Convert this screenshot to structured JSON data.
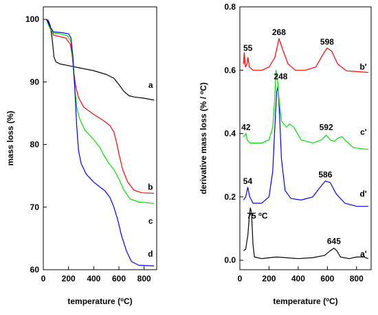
{
  "chart_data": [
    {
      "type": "line",
      "xlabel": "temperature (°C)",
      "ylabel": "mass loss (%)",
      "xlim": [
        0,
        900
      ],
      "ylim": [
        60,
        102
      ],
      "xticks": [
        0,
        200,
        400,
        600,
        800
      ],
      "yticks": [
        60,
        70,
        80,
        90,
        100
      ],
      "grid": false,
      "series": [
        {
          "name": "a",
          "color": "#000000",
          "label_at": [
            870,
            89.5
          ],
          "points": [
            [
              25,
              100
            ],
            [
              40,
              99.8
            ],
            [
              55,
              99
            ],
            [
              70,
              97
            ],
            [
              85,
              94
            ],
            [
              100,
              93.2
            ],
            [
              130,
              92.9
            ],
            [
              200,
              92.6
            ],
            [
              300,
              92.2
            ],
            [
              400,
              91.8
            ],
            [
              500,
              91.2
            ],
            [
              560,
              90.6
            ],
            [
              600,
              89.6
            ],
            [
              640,
              88.5
            ],
            [
              680,
              87.8
            ],
            [
              720,
              87.6
            ],
            [
              800,
              87.4
            ],
            [
              880,
              87.1
            ]
          ]
        },
        {
          "name": "b",
          "color": "#ff0000",
          "label_at": [
            870,
            73.2
          ],
          "points": [
            [
              25,
              100
            ],
            [
              50,
              99
            ],
            [
              80,
              97.5
            ],
            [
              120,
              97.3
            ],
            [
              180,
              97
            ],
            [
              215,
              96
            ],
            [
              230,
              94
            ],
            [
              245,
              91
            ],
            [
              260,
              89
            ],
            [
              280,
              87.5
            ],
            [
              320,
              86
            ],
            [
              400,
              84.8
            ],
            [
              480,
              83.8
            ],
            [
              530,
              83
            ],
            [
              560,
              82
            ],
            [
              580,
              80.5
            ],
            [
              600,
              78.5
            ],
            [
              630,
              76
            ],
            [
              670,
              74
            ],
            [
              720,
              72.7
            ],
            [
              780,
              72.3
            ],
            [
              880,
              72.2
            ]
          ]
        },
        {
          "name": "c",
          "color": "#00e000",
          "label_at": [
            870,
            67.8
          ],
          "points": [
            [
              25,
              100
            ],
            [
              50,
              98.6
            ],
            [
              80,
              97.8
            ],
            [
              130,
              97.7
            ],
            [
              190,
              97.4
            ],
            [
              220,
              96.5
            ],
            [
              235,
              93
            ],
            [
              250,
              89
            ],
            [
              265,
              86
            ],
            [
              290,
              84
            ],
            [
              330,
              82.3
            ],
            [
              400,
              80.8
            ],
            [
              450,
              79.5
            ],
            [
              480,
              78.3
            ],
            [
              520,
              77
            ],
            [
              560,
              76
            ],
            [
              600,
              74.5
            ],
            [
              640,
              72.7
            ],
            [
              690,
              71.3
            ],
            [
              760,
              70.8
            ],
            [
              880,
              70.6
            ]
          ]
        },
        {
          "name": "d",
          "color": "#0000ff",
          "label_at": [
            870,
            62.5
          ],
          "points": [
            [
              25,
              100
            ],
            [
              50,
              99
            ],
            [
              80,
              98
            ],
            [
              140,
              97.9
            ],
            [
              200,
              97.7
            ],
            [
              220,
              97
            ],
            [
              235,
              94
            ],
            [
              250,
              89
            ],
            [
              265,
              83
            ],
            [
              280,
              79
            ],
            [
              300,
              77
            ],
            [
              340,
              75.3
            ],
            [
              400,
              74
            ],
            [
              450,
              73.2
            ],
            [
              490,
              72.6
            ],
            [
              530,
              71.5
            ],
            [
              560,
              70
            ],
            [
              590,
              68
            ],
            [
              620,
              65.5
            ],
            [
              660,
              63
            ],
            [
              700,
              61.3
            ],
            [
              760,
              60.7
            ],
            [
              880,
              60.6
            ]
          ]
        }
      ]
    },
    {
      "type": "line",
      "xlabel": "temperature (°C)",
      "ylabel": "derivative mass loss (% / °C)",
      "xlim": [
        0,
        900
      ],
      "ylim": [
        -0.03,
        0.8
      ],
      "xticks": [
        0,
        200,
        400,
        600,
        800
      ],
      "yticks": [
        0.0,
        0.2,
        0.4,
        0.6,
        0.8
      ],
      "ytick_labels": [
        "0.0",
        "0.2",
        "0.4",
        "0.6",
        "0.8"
      ],
      "grid": false,
      "series": [
        {
          "name": "a'",
          "color": "#000000",
          "label_at": [
            870,
            0.02
          ],
          "points": [
            [
              25,
              0.03
            ],
            [
              40,
              0.035
            ],
            [
              55,
              0.08
            ],
            [
              65,
              0.14
            ],
            [
              72,
              0.165
            ],
            [
              80,
              0.15
            ],
            [
              90,
              0.05
            ],
            [
              100,
              0.01
            ],
            [
              150,
              0.005
            ],
            [
              250,
              0.01
            ],
            [
              400,
              0.005
            ],
            [
              500,
              0.008
            ],
            [
              580,
              0.015
            ],
            [
              620,
              0.03
            ],
            [
              645,
              0.038
            ],
            [
              665,
              0.03
            ],
            [
              690,
              0.01
            ],
            [
              750,
              0.005
            ],
            [
              800,
              0.01
            ],
            [
              850,
              0.01
            ],
            [
              880,
              0.005
            ]
          ]
        },
        {
          "name": "d'",
          "color": "#0000ff",
          "label_at": [
            870,
            0.21
          ],
          "points": [
            [
              25,
              0.19
            ],
            [
              40,
              0.2
            ],
            [
              54,
              0.23
            ],
            [
              68,
              0.2
            ],
            [
              90,
              0.18
            ],
            [
              150,
              0.18
            ],
            [
              200,
              0.2
            ],
            [
              225,
              0.28
            ],
            [
              240,
              0.42
            ],
            [
              252,
              0.53
            ],
            [
              262,
              0.55
            ],
            [
              272,
              0.46
            ],
            [
              285,
              0.32
            ],
            [
              310,
              0.22
            ],
            [
              350,
              0.195
            ],
            [
              420,
              0.19
            ],
            [
              500,
              0.2
            ],
            [
              550,
              0.23
            ],
            [
              586,
              0.25
            ],
            [
              620,
              0.245
            ],
            [
              660,
              0.21
            ],
            [
              720,
              0.18
            ],
            [
              800,
              0.17
            ],
            [
              880,
              0.17
            ]
          ]
        },
        {
          "name": "c'",
          "color": "#00e000",
          "label_at": [
            870,
            0.405
          ],
          "points": [
            [
              25,
              0.39
            ],
            [
              35,
              0.395
            ],
            [
              42,
              0.4
            ],
            [
              50,
              0.38
            ],
            [
              70,
              0.37
            ],
            [
              150,
              0.37
            ],
            [
              200,
              0.38
            ],
            [
              225,
              0.42
            ],
            [
              238,
              0.5
            ],
            [
              248,
              0.6
            ],
            [
              258,
              0.57
            ],
            [
              270,
              0.5
            ],
            [
              285,
              0.44
            ],
            [
              300,
              0.43
            ],
            [
              320,
              0.42
            ],
            [
              340,
              0.43
            ],
            [
              370,
              0.42
            ],
            [
              420,
              0.38
            ],
            [
              500,
              0.37
            ],
            [
              560,
              0.38
            ],
            [
              592,
              0.395
            ],
            [
              620,
              0.38
            ],
            [
              650,
              0.375
            ],
            [
              670,
              0.385
            ],
            [
              700,
              0.39
            ],
            [
              730,
              0.375
            ],
            [
              780,
              0.355
            ],
            [
              880,
              0.35
            ]
          ]
        },
        {
          "name": "b'",
          "color": "#ff0000",
          "label_at": [
            870,
            0.61
          ],
          "points": [
            [
              25,
              0.62
            ],
            [
              30,
              0.655
            ],
            [
              38,
              0.61
            ],
            [
              50,
              0.62
            ],
            [
              55,
              0.64
            ],
            [
              65,
              0.61
            ],
            [
              90,
              0.6
            ],
            [
              150,
              0.6
            ],
            [
              200,
              0.61
            ],
            [
              240,
              0.64
            ],
            [
              268,
              0.7
            ],
            [
              290,
              0.67
            ],
            [
              330,
              0.62
            ],
            [
              380,
              0.6
            ],
            [
              450,
              0.6
            ],
            [
              520,
              0.61
            ],
            [
              570,
              0.65
            ],
            [
              598,
              0.67
            ],
            [
              630,
              0.66
            ],
            [
              670,
              0.62
            ],
            [
              730,
              0.598
            ],
            [
              880,
              0.593
            ]
          ]
        }
      ],
      "annotations": [
        {
          "text": "55",
          "at": [
            55,
            0.67
          ]
        },
        {
          "text": "268",
          "at": [
            268,
            0.72
          ]
        },
        {
          "text": "598",
          "at": [
            598,
            0.69
          ]
        },
        {
          "text": "248",
          "at": [
            280,
            0.58
          ]
        },
        {
          "text": "42",
          "at": [
            42,
            0.42
          ]
        },
        {
          "text": "592",
          "at": [
            592,
            0.42
          ]
        },
        {
          "text": "54",
          "at": [
            54,
            0.25
          ]
        },
        {
          "text": "586",
          "at": [
            586,
            0.27
          ]
        },
        {
          "text": "75 °C",
          "at": [
            120,
            0.14
          ]
        },
        {
          "text": "645",
          "at": [
            645,
            0.06
          ]
        }
      ]
    }
  ]
}
